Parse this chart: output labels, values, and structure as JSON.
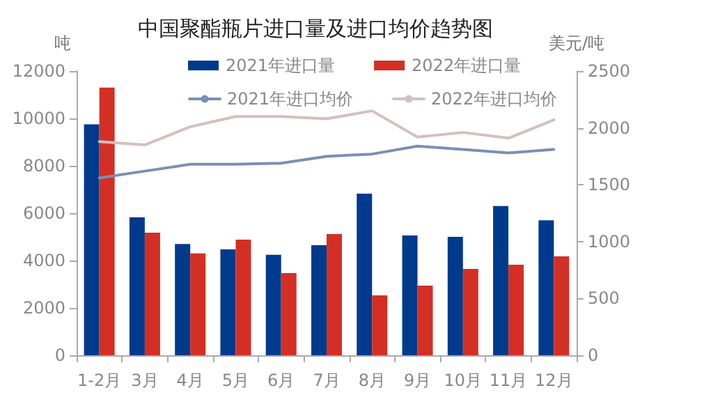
{
  "chart_data": {
    "type": "bar",
    "title": "中国聚酯瓶片进口量及进口均价趋势图",
    "ylabel": "吨",
    "y2label": "美元/吨",
    "categories": [
      "1-2月",
      "3月",
      "4月",
      "5月",
      "6月",
      "7月",
      "8月",
      "9月",
      "10月",
      "11月",
      "12月"
    ],
    "series": [
      {
        "name": "2021年进口量",
        "color": "#003a8c",
        "values": [
          9750,
          5820,
          4700,
          4470,
          4240,
          4650,
          6820,
          5060,
          5000,
          6300,
          5700
        ]
      },
      {
        "name": "2022年进口量",
        "color": "#d42f24",
        "values": [
          11300,
          5180,
          4300,
          4880,
          3470,
          5120,
          2530,
          2940,
          3650,
          3820,
          4180
        ]
      },
      {
        "name": "2021年进口均价",
        "type": "line",
        "axis": "y2",
        "color": "#7c8fb3",
        "values": [
          1560,
          1620,
          1680,
          1680,
          1690,
          1750,
          1770,
          1840,
          1810,
          1780,
          1810
        ]
      },
      {
        "name": "2022年进口均价",
        "type": "line",
        "axis": "y2",
        "color": "#d4bfc1",
        "values": [
          1880,
          1850,
          2010,
          2100,
          2100,
          2080,
          2150,
          1920,
          1960,
          1910,
          2070
        ]
      }
    ],
    "ylim": [
      0,
      12000
    ],
    "yticks": [
      0,
      2000,
      4000,
      6000,
      8000,
      10000,
      12000
    ],
    "y2lim": [
      0,
      2500
    ],
    "y2ticks": [
      0,
      500,
      1000,
      1500,
      2000,
      2500
    ],
    "grid": false,
    "legend": "top",
    "marker": "none"
  }
}
